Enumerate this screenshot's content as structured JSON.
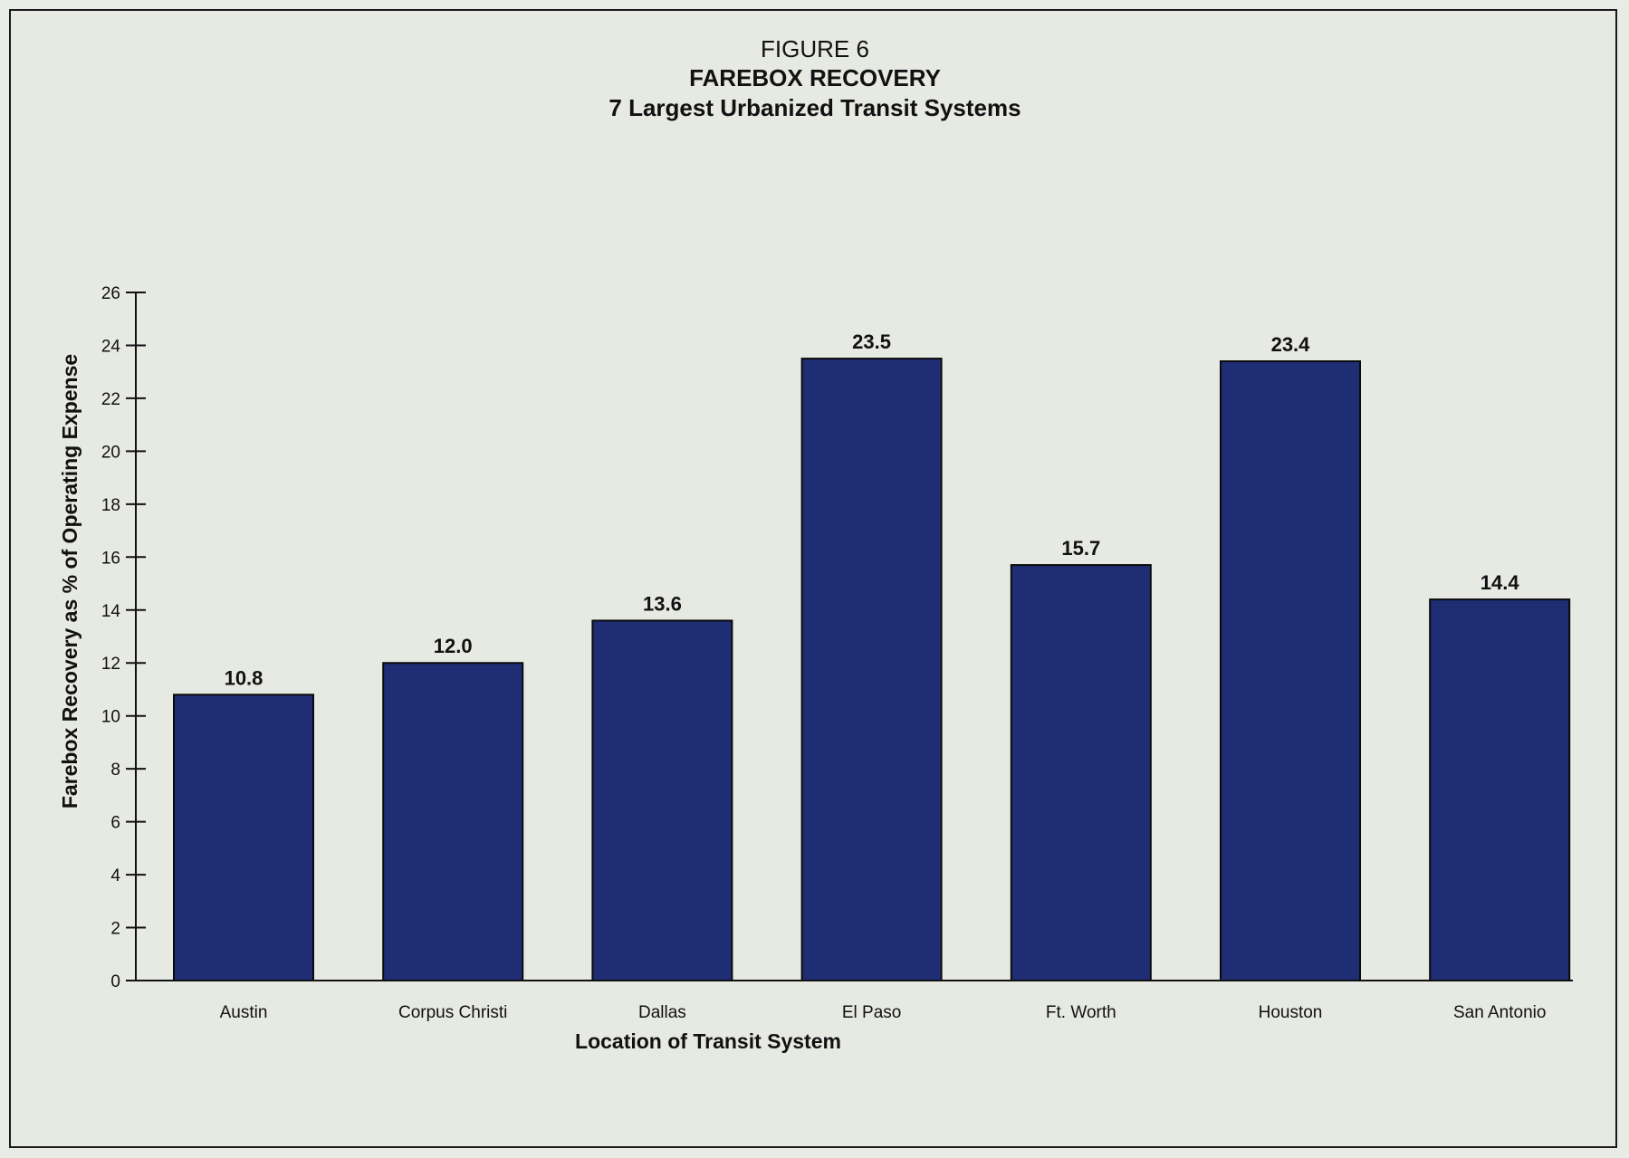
{
  "figure": {
    "label": "FIGURE 6",
    "title": "FAREBOX RECOVERY",
    "subtitle": "7 Largest Urbanized Transit Systems"
  },
  "chart_data": {
    "type": "bar",
    "title": "FAREBOX RECOVERY",
    "subtitle": "7 Largest Urbanized Transit Systems",
    "xlabel": "Location of Transit System",
    "ylabel": "Farebox Recovery as % of Operating Expense",
    "categories": [
      "Austin",
      "Corpus Christi",
      "Dallas",
      "El Paso",
      "Ft. Worth",
      "Houston",
      "San Antonio"
    ],
    "values": [
      10.8,
      12.0,
      13.6,
      23.5,
      15.7,
      23.4,
      14.4
    ],
    "value_labels": [
      "10.8",
      "12.0",
      "13.6",
      "23.5",
      "15.7",
      "23.4",
      "14.4"
    ],
    "ylim": [
      0,
      26
    ],
    "yticks": [
      0,
      2,
      4,
      6,
      8,
      10,
      12,
      14,
      16,
      18,
      20,
      22,
      24,
      26
    ],
    "grid": false,
    "legend": "none",
    "bar_color": "#1f2e74",
    "bar_outline": "#0a0a0a"
  }
}
